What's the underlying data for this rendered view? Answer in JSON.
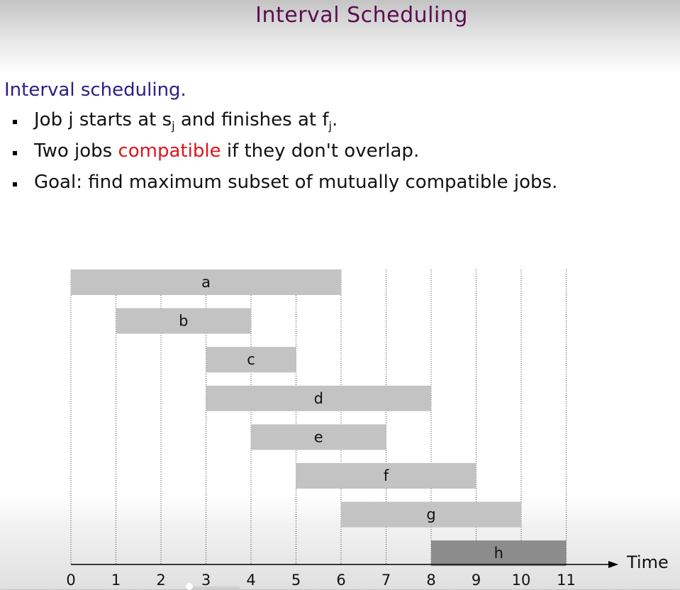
{
  "slide": {
    "title": "Interval Scheduling",
    "heading": "Interval scheduling.",
    "bullet1": {
      "p1": "Job j starts at s",
      "sub1": "j",
      "p2": " and finishes at f",
      "sub2": "j",
      "p3": "."
    },
    "bullet2": {
      "p1": "Two jobs ",
      "highlight": "compatible",
      "p2": " if they don't overlap."
    },
    "bullet3": "Goal: find maximum subset of mutually compatible jobs."
  },
  "colors": {
    "title": "#5b0f4f",
    "heading": "#2a1f86",
    "highlight": "#e0141b",
    "job_bar": "#c3c3c3",
    "highlighted_job_bar": "#8c8c8c"
  },
  "chart_data": {
    "type": "gantt",
    "xlabel": "Time",
    "ticks": [
      0,
      1,
      2,
      3,
      4,
      5,
      6,
      7,
      8,
      9,
      10,
      11
    ],
    "jobs": [
      {
        "name": "a",
        "start": 0,
        "end": 6
      },
      {
        "name": "b",
        "start": 1,
        "end": 4
      },
      {
        "name": "c",
        "start": 3,
        "end": 5
      },
      {
        "name": "d",
        "start": 3,
        "end": 8
      },
      {
        "name": "e",
        "start": 4,
        "end": 7
      },
      {
        "name": "f",
        "start": 5,
        "end": 9
      },
      {
        "name": "g",
        "start": 6,
        "end": 10
      },
      {
        "name": "h",
        "start": 8,
        "end": 11,
        "highlighted": true
      }
    ]
  }
}
